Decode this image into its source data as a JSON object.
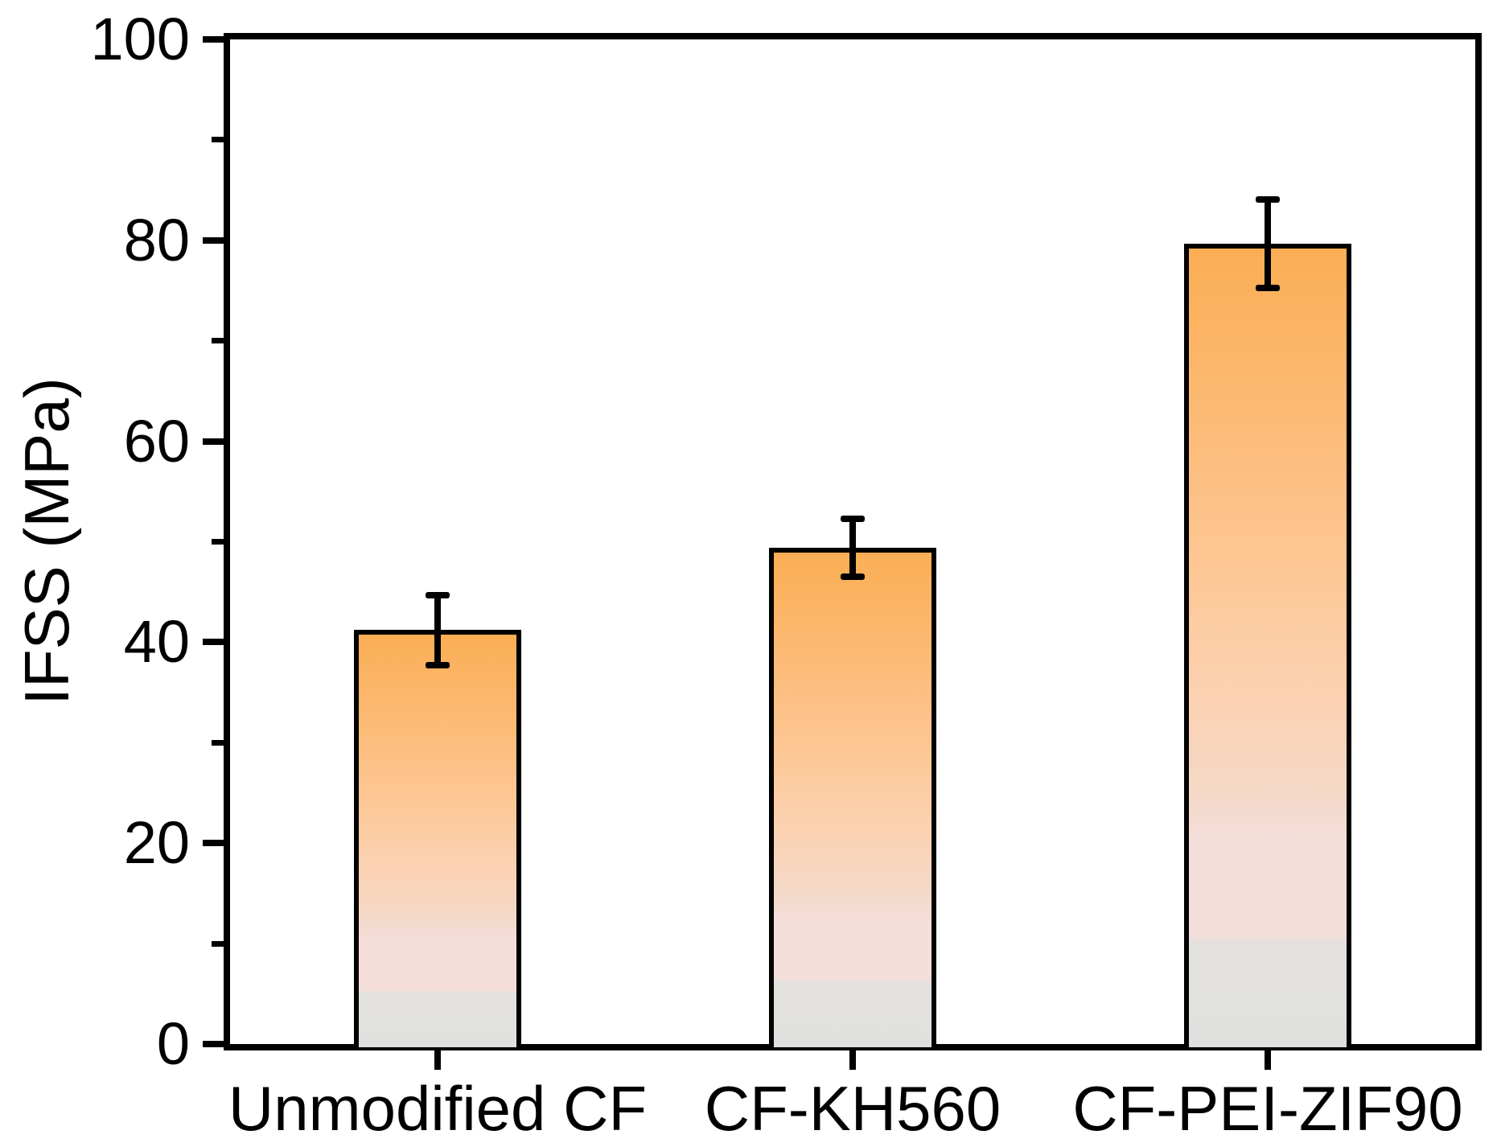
{
  "chart_data": {
    "type": "bar",
    "title": "",
    "xlabel": "",
    "ylabel": "IFSS (MPa)",
    "ylim": [
      0,
      100
    ],
    "yticks_major": [
      0,
      20,
      40,
      60,
      80,
      100
    ],
    "ytick_labels": [
      "0",
      "20",
      "40",
      "60",
      "80",
      "100"
    ],
    "yticks_minor": [
      10,
      30,
      50,
      70,
      90
    ],
    "grid": false,
    "legend_position": "none",
    "categories": [
      "Unmodified CF",
      "CF-KH560",
      "CF-PEI-ZIF90"
    ],
    "series": [
      {
        "name": "IFSS",
        "values": [
          41.2,
          49.4,
          79.7
        ],
        "errors": [
          3.5,
          2.9,
          4.4
        ]
      }
    ],
    "colors": {
      "background": "#FFFFFF",
      "axis": "#000000",
      "text": "#000000",
      "bar_border": "#000000",
      "error_bar": "#000000",
      "bar_gradient_stops": [
        [
          "0%",
          "#FBAE54"
        ],
        [
          "22%",
          "#FCBB77"
        ],
        [
          "40%",
          "#FDC795"
        ],
        [
          "56%",
          "#FCD2B2"
        ],
        [
          "68%",
          "#F4D8C6"
        ],
        [
          "74%",
          "#F5DEDA"
        ],
        [
          "86%",
          "#F5DEDA"
        ],
        [
          "87%",
          "#E3E1DE"
        ],
        [
          "100%",
          "#E0E1DE"
        ]
      ]
    }
  }
}
